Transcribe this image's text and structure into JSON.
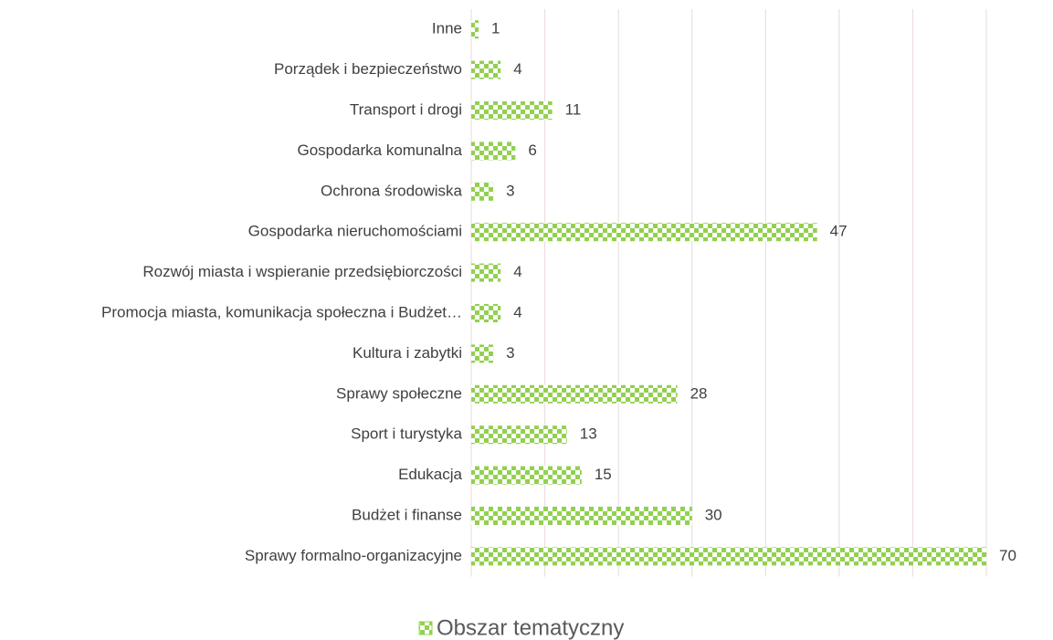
{
  "chart_data": {
    "type": "bar",
    "orientation": "horizontal",
    "categories": [
      "Inne",
      "Porządek i bezpieczeństwo",
      "Transport i drogi",
      "Gospodarka komunalna",
      "Ochrona środowiska",
      "Gospodarka nieruchomościami",
      "Rozwój miasta i wspieranie przedsiębiorczości",
      "Promocja miasta, komunikacja społeczna i Budżet…",
      "Kultura i zabytki",
      "Sprawy społeczne",
      "Sport i turystyka",
      "Edukacja",
      "Budżet i finanse",
      "Sprawy formalno-organizacyjne"
    ],
    "series": [
      {
        "name": "Obszar tematyczny",
        "color": "#92d050",
        "values": [
          1,
          4,
          11,
          6,
          3,
          47,
          4,
          4,
          3,
          28,
          13,
          15,
          30,
          70
        ]
      }
    ],
    "xlim": [
      0,
      70
    ],
    "xticks": [
      0,
      10,
      20,
      30,
      40,
      50,
      60,
      70
    ],
    "grid": true,
    "legend": "bottom"
  }
}
